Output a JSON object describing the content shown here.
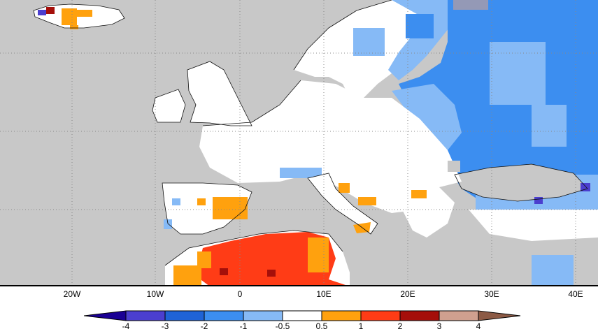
{
  "map": {
    "lon_labels": [
      "20W",
      "10W",
      "0",
      "10E",
      "20E",
      "30E",
      "40E"
    ],
    "land_color": "#c8c8c8",
    "neutral_color": "#ffffff",
    "colors": {
      "lt_-4": "#1a0094",
      "-4_-3": "#4b3fcf",
      "-3_-2": "#1f63d6",
      "-2_-1": "#3c8ef0",
      "-1_-0.5": "#86baf6",
      "-0.5_0.5": "#ffffff",
      "0.5_1": "#ffa10e",
      "1_2": "#ff3c16",
      "2_3": "#a50f0a",
      "3_4": "#cfa08f",
      "gt_4": "#8c5a45"
    }
  },
  "legend": {
    "labels": [
      "-4",
      "-3",
      "-2",
      "-1",
      "-0.5",
      "0.5",
      "1",
      "2",
      "3",
      "4"
    ],
    "colors": [
      "#1a0094",
      "#4b3fcf",
      "#1f63d6",
      "#3c8ef0",
      "#86baf6",
      "#ffffff",
      "#ffa10e",
      "#ff3c16",
      "#a50f0a",
      "#cfa08f",
      "#8c5a45"
    ]
  }
}
